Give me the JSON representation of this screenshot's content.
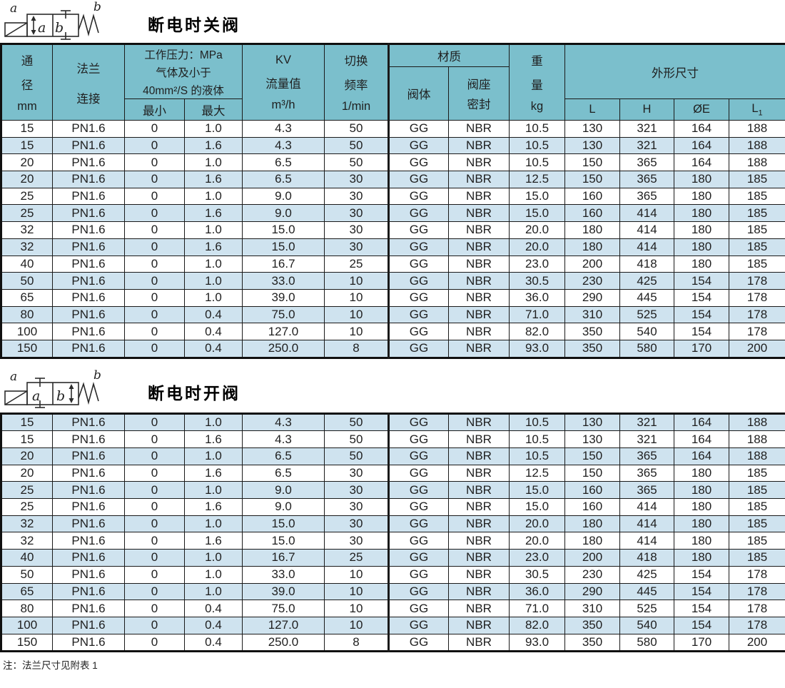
{
  "colors": {
    "header_bg": "#7bbfcc",
    "alt_row_bg": "#cfe3ef",
    "row_bg": "#ffffff",
    "border": "#1a1a1a",
    "title_text": "#000000"
  },
  "sections": [
    {
      "title": "断电时关阀",
      "symbol": {
        "coil_label": "a",
        "spring_label": "b",
        "chamber_a": "a",
        "chamber_b": "b"
      }
    },
    {
      "title": "断电时开阀",
      "symbol": {
        "coil_label": "a",
        "spring_label": "b",
        "chamber_a": "a",
        "chamber_b": "b"
      }
    }
  ],
  "table": {
    "header": {
      "diameter_l1": "通",
      "diameter_l2": "径",
      "diameter_unit": "mm",
      "flange_l1": "法兰",
      "flange_l2": "连接",
      "pressure_l1": "工作压力：MPa",
      "pressure_l2": "气体及小于",
      "pressure_l3": "40mm²/S 的液体",
      "pressure_min": "最小",
      "pressure_max": "最大",
      "kv_l1": "KV",
      "kv_l2": "流量值",
      "kv_l3": "m³/h",
      "freq_l1": "切换",
      "freq_l2": "频率",
      "freq_l3": "1/min",
      "material": "材质",
      "material_body": "阀体",
      "seal_l1": "阀座",
      "seal_l2": "密封",
      "weight_l1": "重",
      "weight_l2": "量",
      "weight_unit": "kg",
      "dimensions": "外形尺寸",
      "dim_L": "L",
      "dim_H": "H",
      "dim_E": "ØE",
      "dim_L1_base": "L",
      "dim_L1_sub": "1"
    },
    "rows": [
      [
        "15",
        "PN1.6",
        "0",
        "1.0",
        "4.3",
        "50",
        "GG",
        "NBR",
        "10.5",
        "130",
        "321",
        "164",
        "188"
      ],
      [
        "15",
        "PN1.6",
        "0",
        "1.6",
        "4.3",
        "50",
        "GG",
        "NBR",
        "10.5",
        "130",
        "321",
        "164",
        "188"
      ],
      [
        "20",
        "PN1.6",
        "0",
        "1.0",
        "6.5",
        "50",
        "GG",
        "NBR",
        "10.5",
        "150",
        "365",
        "164",
        "188"
      ],
      [
        "20",
        "PN1.6",
        "0",
        "1.6",
        "6.5",
        "30",
        "GG",
        "NBR",
        "12.5",
        "150",
        "365",
        "180",
        "185"
      ],
      [
        "25",
        "PN1.6",
        "0",
        "1.0",
        "9.0",
        "30",
        "GG",
        "NBR",
        "15.0",
        "160",
        "365",
        "180",
        "185"
      ],
      [
        "25",
        "PN1.6",
        "0",
        "1.6",
        "9.0",
        "30",
        "GG",
        "NBR",
        "15.0",
        "160",
        "414",
        "180",
        "185"
      ],
      [
        "32",
        "PN1.6",
        "0",
        "1.0",
        "15.0",
        "30",
        "GG",
        "NBR",
        "20.0",
        "180",
        "414",
        "180",
        "185"
      ],
      [
        "32",
        "PN1.6",
        "0",
        "1.6",
        "15.0",
        "30",
        "GG",
        "NBR",
        "20.0",
        "180",
        "414",
        "180",
        "185"
      ],
      [
        "40",
        "PN1.6",
        "0",
        "1.0",
        "16.7",
        "25",
        "GG",
        "NBR",
        "23.0",
        "200",
        "418",
        "180",
        "185"
      ],
      [
        "50",
        "PN1.6",
        "0",
        "1.0",
        "33.0",
        "10",
        "GG",
        "NBR",
        "30.5",
        "230",
        "425",
        "154",
        "178"
      ],
      [
        "65",
        "PN1.6",
        "0",
        "1.0",
        "39.0",
        "10",
        "GG",
        "NBR",
        "36.0",
        "290",
        "445",
        "154",
        "178"
      ],
      [
        "80",
        "PN1.6",
        "0",
        "0.4",
        "75.0",
        "10",
        "GG",
        "NBR",
        "71.0",
        "310",
        "525",
        "154",
        "178"
      ],
      [
        "100",
        "PN1.6",
        "0",
        "0.4",
        "127.0",
        "10",
        "GG",
        "NBR",
        "82.0",
        "350",
        "540",
        "154",
        "178"
      ],
      [
        "150",
        "PN1.6",
        "0",
        "0.4",
        "250.0",
        "8",
        "GG",
        "NBR",
        "93.0",
        "350",
        "580",
        "170",
        "200"
      ]
    ]
  },
  "footnote": "注：法兰尺寸见附表 1"
}
